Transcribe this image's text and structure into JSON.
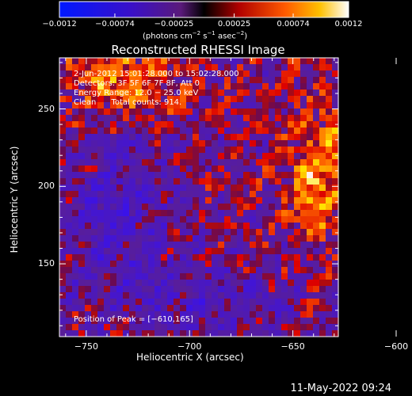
{
  "chart_data": {
    "type": "heatmap",
    "title": "Reconstructed RHESSI Image",
    "xlabel": "Heliocentric X (arcsec)",
    "ylabel": "Heliocentric Y (arcsec)",
    "xlim": [
      -763,
      -628
    ],
    "ylim": [
      103,
      283
    ],
    "x_ticks": [
      -750,
      -700,
      -650,
      -600
    ],
    "y_ticks": [
      150,
      200,
      250
    ],
    "x_tick_labels": [
      "−750",
      "−700",
      "−650",
      "−600"
    ],
    "y_tick_labels": [
      "150",
      "200",
      "250"
    ],
    "colorbar": {
      "range": [
        -0.0012,
        0.0012
      ],
      "ticks": [
        -0.0012,
        -0.00074,
        -0.00025,
        0.00025,
        0.00074,
        0.0012
      ],
      "tick_labels": [
        "−0.0012",
        "−0.00074",
        "−0.00025",
        "0.00025",
        "0.00074",
        "0.0012"
      ],
      "unit_parts": [
        "(photons cm",
        "−2",
        " s",
        "−1",
        " asec",
        "−2",
        ")"
      ]
    },
    "annotations": {
      "time": "2‑Jun‑2012 15:01:28.000 to 15:02:28.000",
      "detectors": "Detectors: 3F 5F 6F 7F 8F, Att 0",
      "energy": "Energy Range: 12.0 − 25.0 keV",
      "clean": "Clean      Total counts: 914.",
      "peak": "Position of Peak = [−610,165]"
    },
    "peak": {
      "x": -610,
      "y": 165
    }
  },
  "footer": {
    "timestamp": "11‑May‑2022 09:24"
  }
}
